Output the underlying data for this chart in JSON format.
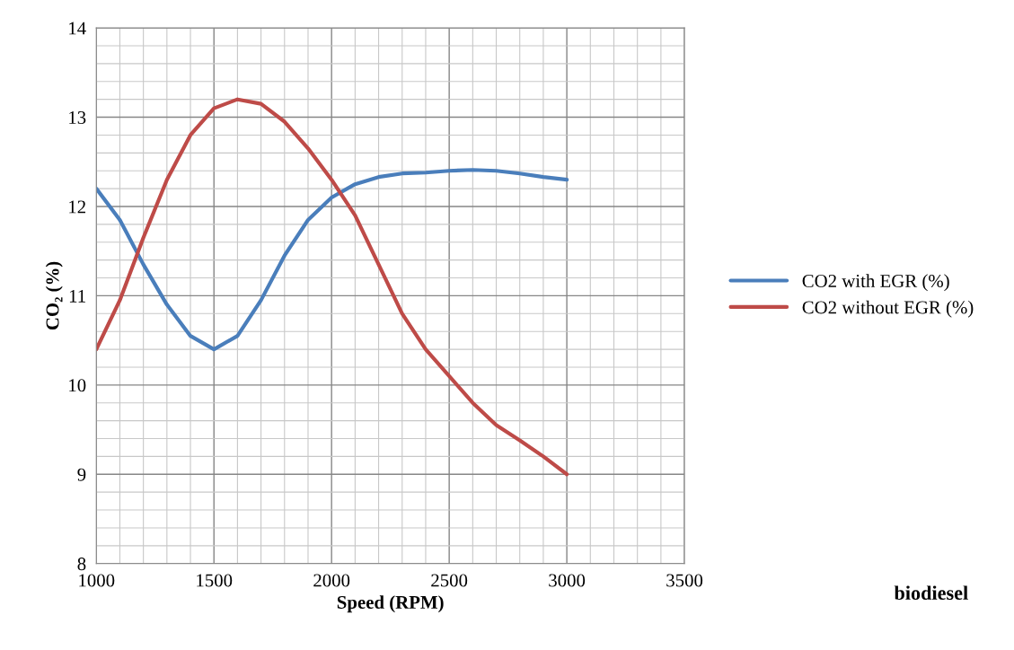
{
  "chart_data": {
    "type": "line",
    "xlabel": "Speed (RPM)",
    "ylabel": "CO₂ (%)",
    "x": [
      1000,
      1100,
      1200,
      1300,
      1400,
      1500,
      1600,
      1700,
      1800,
      1900,
      2000,
      2100,
      2200,
      2300,
      2400,
      2500,
      2600,
      2700,
      2800,
      2900,
      3000
    ],
    "series": [
      {
        "name": "CO2 with EGR (%)",
        "color": "#4a7ebb",
        "values": [
          12.2,
          11.85,
          11.35,
          10.9,
          10.55,
          10.4,
          10.55,
          10.95,
          11.45,
          11.85,
          12.1,
          12.25,
          12.33,
          12.37,
          12.38,
          12.4,
          12.41,
          12.4,
          12.37,
          12.33,
          12.3
        ]
      },
      {
        "name": "CO2 without EGR (%)",
        "color": "#be4b48",
        "values": [
          10.4,
          10.95,
          11.65,
          12.3,
          12.8,
          13.1,
          13.2,
          13.15,
          12.95,
          12.65,
          12.3,
          11.9,
          11.35,
          10.8,
          10.4,
          10.1,
          9.8,
          9.55,
          9.38,
          9.2,
          9.0
        ]
      }
    ],
    "xlim": [
      1000,
      3500
    ],
    "xticks": [
      1000,
      1500,
      2000,
      2500,
      3000,
      3500
    ],
    "ylim": [
      8,
      14
    ],
    "yticks": [
      8,
      9,
      10,
      11,
      12,
      13,
      14
    ],
    "grid": true,
    "legend": "right",
    "marker": "none",
    "line_style": "solid",
    "annotations": [
      "biodiesel"
    ]
  }
}
